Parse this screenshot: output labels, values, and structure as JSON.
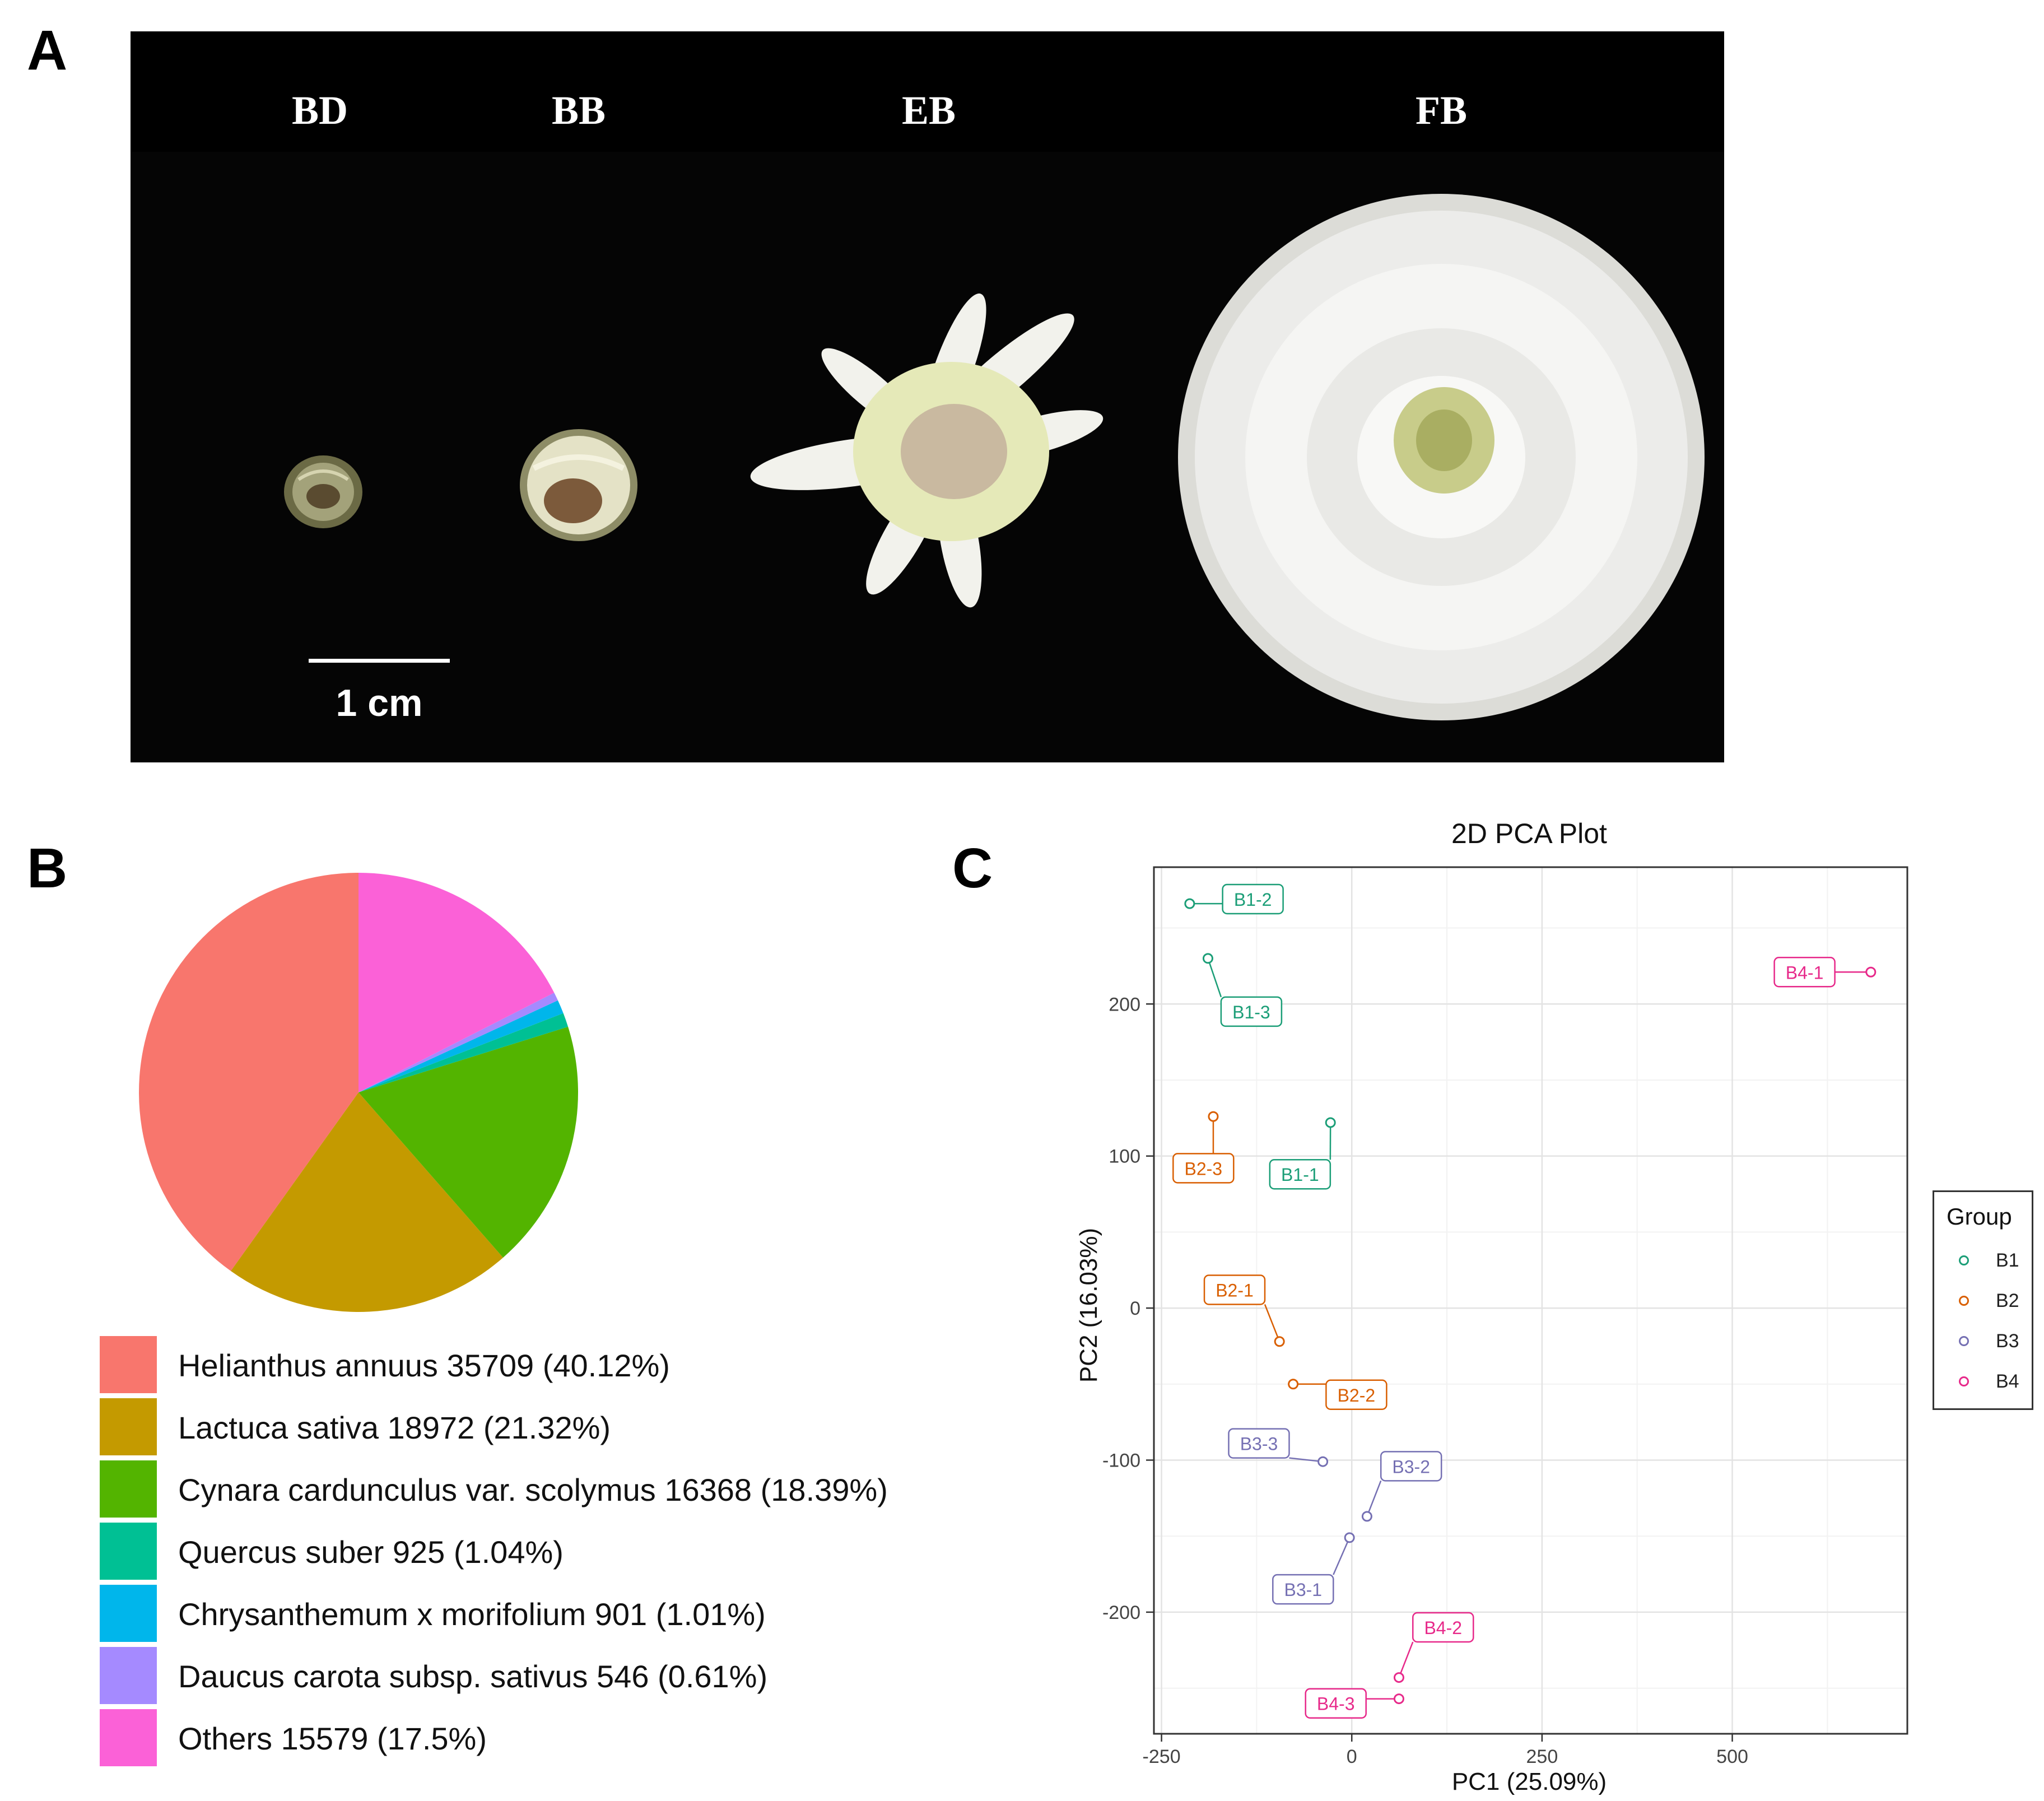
{
  "panel_letters": {
    "a": "A",
    "b": "B",
    "c": "C"
  },
  "photo": {
    "stages": [
      "BD",
      "BB",
      "EB",
      "FB"
    ],
    "scale_bar_label": "1 cm"
  },
  "chart_data": [
    {
      "type": "pie",
      "slices": [
        {
          "label": "Helianthus annuus 35709 (40.12%)",
          "value": 35709,
          "percent": 40.12,
          "color": "#F8766D"
        },
        {
          "label": "Lactuca sativa 18972 (21.32%)",
          "value": 18972,
          "percent": 21.32,
          "color": "#C49A00"
        },
        {
          "label": "Cynara cardunculus var. scolymus 16368 (18.39%)",
          "value": 16368,
          "percent": 18.39,
          "color": "#53B400"
        },
        {
          "label": "Quercus suber 925 (1.04%)",
          "value": 925,
          "percent": 1.04,
          "color": "#00C094"
        },
        {
          "label": "Chrysanthemum x morifolium 901 (1.01%)",
          "value": 901,
          "percent": 1.01,
          "color": "#00B6EB"
        },
        {
          "label": "Daucus carota subsp. sativus 546 (0.61%)",
          "value": 546,
          "percent": 0.61,
          "color": "#A58AFF"
        },
        {
          "label": "Others 15579 (17.5%)",
          "value": 15579,
          "percent": 17.5,
          "color": "#FB61D7"
        }
      ],
      "start_angle_deg": 0,
      "direction": "clockwise-start-top"
    },
    {
      "type": "scatter",
      "title": "2D PCA Plot",
      "xlabel": "PC1 (25.09%)",
      "ylabel": "PC2 (16.03%)",
      "xlim": [
        -260,
        730
      ],
      "ylim": [
        -280,
        290
      ],
      "xticks": [
        -250,
        0,
        250,
        500
      ],
      "xtick_labels": [
        "-250",
        "0",
        "250",
        "500"
      ],
      "yticks": [
        -200,
        -100,
        0,
        100,
        200
      ],
      "ytick_labels": [
        "-200",
        "-100",
        "0",
        "100",
        "200"
      ],
      "legend_title": "Group",
      "groups": [
        {
          "name": "B1",
          "color": "#1B9E77"
        },
        {
          "name": "B2",
          "color": "#D95F02"
        },
        {
          "name": "B3",
          "color": "#7570B3"
        },
        {
          "name": "B4",
          "color": "#E7298A"
        }
      ],
      "points": [
        {
          "label": "B1-1",
          "group": "B1",
          "x": -28,
          "y": 122,
          "lx": -68,
          "ly": 88
        },
        {
          "label": "B1-2",
          "group": "B1",
          "x": -213,
          "y": 266,
          "lx": -130,
          "ly": 269
        },
        {
          "label": "B1-3",
          "group": "B1",
          "x": -189,
          "y": 230,
          "lx": -132,
          "ly": 195
        },
        {
          "label": "B2-1",
          "group": "B2",
          "x": -95,
          "y": -22,
          "lx": -154,
          "ly": 12
        },
        {
          "label": "B2-2",
          "group": "B2",
          "x": -77,
          "y": -50,
          "lx": 6,
          "ly": -57
        },
        {
          "label": "B2-3",
          "group": "B2",
          "x": -182,
          "y": 126,
          "lx": -195,
          "ly": 92
        },
        {
          "label": "B3-1",
          "group": "B3",
          "x": -3,
          "y": -151,
          "lx": -64,
          "ly": -185
        },
        {
          "label": "B3-2",
          "group": "B3",
          "x": 20,
          "y": -137,
          "lx": 78,
          "ly": -104
        },
        {
          "label": "B3-3",
          "group": "B3",
          "x": -38,
          "y": -101,
          "lx": -122,
          "ly": -89
        },
        {
          "label": "B4-1",
          "group": "B4",
          "x": 682,
          "y": 221,
          "lx": 595,
          "ly": 221
        },
        {
          "label": "B4-2",
          "group": "B4",
          "x": 62,
          "y": -243,
          "lx": 120,
          "ly": -210
        },
        {
          "label": "B4-3",
          "group": "B4",
          "x": 62,
          "y": -257,
          "lx": -21,
          "ly": -260
        }
      ]
    }
  ]
}
